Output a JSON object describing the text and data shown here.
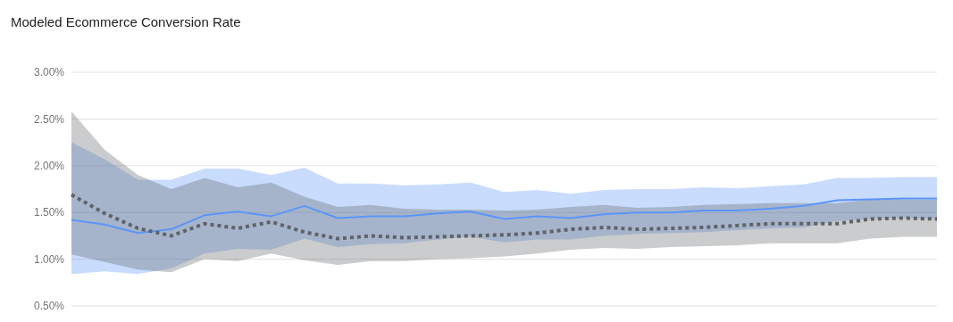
{
  "chart_data": {
    "type": "line",
    "title": "Modeled Ecommerce Conversion Rate",
    "categories": [
      null,
      null,
      null,
      null,
      null,
      null,
      null,
      null,
      null,
      null,
      null,
      null,
      null,
      null,
      null,
      null,
      null,
      null,
      null,
      null,
      null,
      null,
      null,
      null,
      null,
      null,
      null
    ],
    "series": [
      {
        "color": "#5b95f9",
        "line_style": "solid",
        "values": [
          1.42,
          1.37,
          1.28,
          1.32,
          1.47,
          1.51,
          1.46,
          1.57,
          1.44,
          1.46,
          1.46,
          1.49,
          1.51,
          1.43,
          1.46,
          1.44,
          1.48,
          1.5,
          1.5,
          1.52,
          1.52,
          1.54,
          1.57,
          1.63,
          1.64,
          1.65,
          1.65
        ],
        "lower": [
          0.84,
          0.87,
          0.84,
          0.9,
          1.06,
          1.11,
          1.1,
          1.22,
          1.13,
          1.16,
          1.17,
          1.21,
          1.24,
          1.18,
          1.21,
          1.21,
          1.25,
          1.27,
          1.28,
          1.29,
          1.31,
          1.33,
          1.34,
          1.41,
          1.43,
          1.44,
          1.43
        ],
        "upper": [
          2.25,
          2.07,
          1.85,
          1.85,
          1.97,
          1.97,
          1.9,
          1.98,
          1.81,
          1.81,
          1.79,
          1.8,
          1.82,
          1.72,
          1.74,
          1.7,
          1.74,
          1.75,
          1.75,
          1.77,
          1.76,
          1.78,
          1.8,
          1.87,
          1.87,
          1.88,
          1.88
        ]
      },
      {
        "color": "#5f6368",
        "line_style": "dotted",
        "values": [
          1.69,
          1.49,
          1.33,
          1.25,
          1.38,
          1.33,
          1.4,
          1.29,
          1.22,
          1.25,
          1.23,
          1.24,
          1.25,
          1.26,
          1.28,
          1.32,
          1.34,
          1.32,
          1.33,
          1.34,
          1.36,
          1.38,
          1.38,
          1.38,
          1.43,
          1.44,
          1.43
        ],
        "lower": [
          1.05,
          0.97,
          0.89,
          0.86,
          1.0,
          0.98,
          1.06,
          0.99,
          0.94,
          0.98,
          0.98,
          1.0,
          1.01,
          1.03,
          1.06,
          1.1,
          1.12,
          1.11,
          1.13,
          1.14,
          1.15,
          1.17,
          1.17,
          1.17,
          1.22,
          1.24,
          1.24
        ],
        "upper": [
          2.58,
          2.17,
          1.9,
          1.75,
          1.87,
          1.77,
          1.82,
          1.67,
          1.56,
          1.58,
          1.54,
          1.53,
          1.53,
          1.52,
          1.53,
          1.56,
          1.58,
          1.55,
          1.56,
          1.58,
          1.59,
          1.6,
          1.6,
          1.6,
          1.64,
          1.64,
          1.64
        ]
      }
    ],
    "ylim": [
      0.5,
      3.0
    ],
    "yticks": [
      {
        "value": 0.5,
        "label": "0.50%"
      },
      {
        "value": 1.0,
        "label": "1.00%"
      },
      {
        "value": 1.5,
        "label": "1.50%"
      },
      {
        "value": 2.0,
        "label": "2.00%"
      },
      {
        "value": 2.5,
        "label": "2.50%"
      },
      {
        "value": 3.0,
        "label": "3.00%"
      }
    ],
    "grid": "y",
    "legend": false,
    "marker": "none",
    "tick_labels": "y"
  }
}
